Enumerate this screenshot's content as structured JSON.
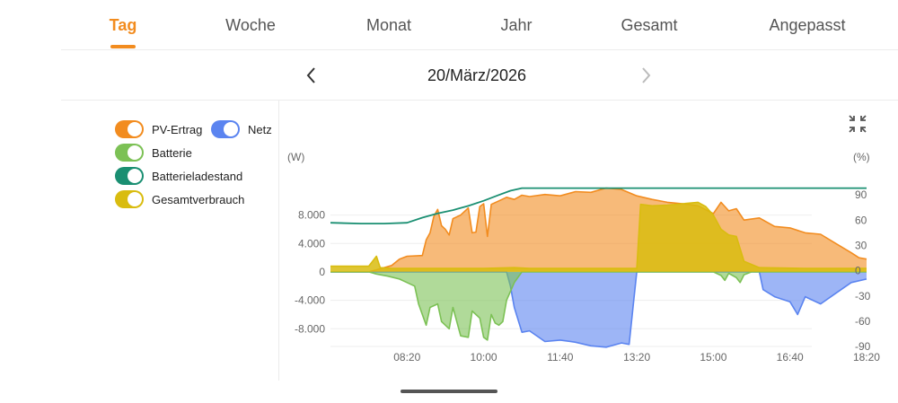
{
  "tabs": [
    {
      "label": "Tag",
      "active": true
    },
    {
      "label": "Woche",
      "active": false
    },
    {
      "label": "Monat",
      "active": false
    },
    {
      "label": "Jahr",
      "active": false
    },
    {
      "label": "Gesamt",
      "active": false
    },
    {
      "label": "Angepasst",
      "active": false
    }
  ],
  "date_nav": {
    "date": "20/März/2026",
    "prev_icon": "chevron-left-icon",
    "next_icon": "chevron-right-icon",
    "next_enabled": false
  },
  "legend": [
    {
      "label": "PV-Ertrag",
      "color": "#f28c1f",
      "on": true
    },
    {
      "label": "Netz",
      "color": "#5b84f0",
      "on": true
    },
    {
      "label": "Batterie",
      "color": "#7cc155",
      "on": true
    },
    {
      "label": "Batterieladestand",
      "color": "#1a8f72",
      "on": true
    },
    {
      "label": "Gesamtverbrauch",
      "color": "#d9bc0f",
      "on": true
    }
  ],
  "collapse_icon": "collapse-arrows-icon",
  "chart_data": {
    "type": "area",
    "y_left_unit": "(W)",
    "y_right_unit": "(%)",
    "y_left_ticks": [
      8000,
      4000,
      0,
      -4000,
      -8000
    ],
    "y_left_tick_labels": [
      "8.000",
      "4.000",
      "0",
      "-4.000",
      "-8.000"
    ],
    "y_right_ticks": [
      90,
      60,
      30,
      0,
      -30,
      -60,
      -90
    ],
    "y_right_tick_labels": [
      "90",
      "60",
      "30",
      "0",
      "-30",
      "-60",
      "-90"
    ],
    "x_tick_labels": [
      "08:20",
      "10:00",
      "11:40",
      "13:20",
      "15:00",
      "16:40",
      "18:20"
    ],
    "y_left_range": [
      -11000,
      12500
    ],
    "y_right_range": [
      -94,
      104
    ],
    "colors": {
      "pv": "#f28c1f",
      "grid": "#5b84f0",
      "battery": "#7cc155",
      "soc": "#1a8f72",
      "consumption": "#d9bc0f"
    },
    "series": [
      {
        "name": "PV-Ertrag",
        "key": "pv",
        "points": [
          [
            "06:40",
            0
          ],
          [
            "07:30",
            0
          ],
          [
            "07:40",
            300
          ],
          [
            "08:00",
            900
          ],
          [
            "08:10",
            1800
          ],
          [
            "08:20",
            2200
          ],
          [
            "08:40",
            2300
          ],
          [
            "08:45",
            4500
          ],
          [
            "08:50",
            5500
          ],
          [
            "08:55",
            7800
          ],
          [
            "09:00",
            8800
          ],
          [
            "09:05",
            6500
          ],
          [
            "09:10",
            6000
          ],
          [
            "09:15",
            5200
          ],
          [
            "09:20",
            7500
          ],
          [
            "09:30",
            8000
          ],
          [
            "09:40",
            9000
          ],
          [
            "09:45",
            5500
          ],
          [
            "09:50",
            5600
          ],
          [
            "09:55",
            9200
          ],
          [
            "10:00",
            9600
          ],
          [
            "10:05",
            5000
          ],
          [
            "10:10",
            9500
          ],
          [
            "10:20",
            10000
          ],
          [
            "10:30",
            10500
          ],
          [
            "10:40",
            10200
          ],
          [
            "10:50",
            10800
          ],
          [
            "11:00",
            10600
          ],
          [
            "11:20",
            10900
          ],
          [
            "11:40",
            10700
          ],
          [
            "12:00",
            11300
          ],
          [
            "12:20",
            11200
          ],
          [
            "12:40",
            11800
          ],
          [
            "13:00",
            11600
          ],
          [
            "13:20",
            10700
          ],
          [
            "13:40",
            10200
          ],
          [
            "14:00",
            9800
          ],
          [
            "14:20",
            9600
          ],
          [
            "14:40",
            9300
          ],
          [
            "15:00",
            8200
          ],
          [
            "15:10",
            9800
          ],
          [
            "15:20",
            8600
          ],
          [
            "15:30",
            8900
          ],
          [
            "15:40",
            7300
          ],
          [
            "16:00",
            7600
          ],
          [
            "16:20",
            6400
          ],
          [
            "16:40",
            6200
          ],
          [
            "17:00",
            5500
          ],
          [
            "17:20",
            5300
          ],
          [
            "17:40",
            4000
          ],
          [
            "18:00",
            2700
          ],
          [
            "18:10",
            2000
          ],
          [
            "18:20",
            1800
          ]
        ]
      },
      {
        "name": "Netz",
        "key": "grid",
        "points": [
          [
            "06:40",
            0
          ],
          [
            "10:30",
            0
          ],
          [
            "10:35",
            -2000
          ],
          [
            "10:40",
            -5000
          ],
          [
            "10:50",
            -8500
          ],
          [
            "11:00",
            -8300
          ],
          [
            "11:20",
            -9800
          ],
          [
            "11:40",
            -9600
          ],
          [
            "12:00",
            -9900
          ],
          [
            "12:20",
            -10400
          ],
          [
            "12:40",
            -10600
          ],
          [
            "13:00",
            -10000
          ],
          [
            "13:10",
            -10200
          ],
          [
            "13:15",
            -5000
          ],
          [
            "13:20",
            0
          ],
          [
            "16:00",
            0
          ],
          [
            "16:05",
            -2500
          ],
          [
            "16:20",
            -3500
          ],
          [
            "16:40",
            -4200
          ],
          [
            "16:50",
            -6000
          ],
          [
            "17:00",
            -3500
          ],
          [
            "17:20",
            -4500
          ],
          [
            "17:40",
            -3000
          ],
          [
            "18:00",
            -1500
          ],
          [
            "18:20",
            -1000
          ]
        ]
      },
      {
        "name": "Batterie",
        "key": "battery",
        "points": [
          [
            "06:40",
            0
          ],
          [
            "07:30",
            0
          ],
          [
            "07:40",
            -300
          ],
          [
            "07:55",
            -600
          ],
          [
            "08:10",
            -1000
          ],
          [
            "08:20",
            -1500
          ],
          [
            "08:30",
            -2000
          ],
          [
            "08:35",
            -4500
          ],
          [
            "08:40",
            -6000
          ],
          [
            "08:45",
            -7500
          ],
          [
            "08:50",
            -5000
          ],
          [
            "09:00",
            -4500
          ],
          [
            "09:05",
            -7000
          ],
          [
            "09:15",
            -8000
          ],
          [
            "09:20",
            -5000
          ],
          [
            "09:30",
            -9000
          ],
          [
            "09:40",
            -9200
          ],
          [
            "09:45",
            -5500
          ],
          [
            "09:55",
            -6500
          ],
          [
            "10:00",
            -9200
          ],
          [
            "10:05",
            -9600
          ],
          [
            "10:10",
            -6000
          ],
          [
            "10:15",
            -7200
          ],
          [
            "10:20",
            -7500
          ],
          [
            "10:25",
            -7000
          ],
          [
            "10:30",
            -4000
          ],
          [
            "10:40",
            -1500
          ],
          [
            "10:50",
            0
          ],
          [
            "15:00",
            0
          ],
          [
            "15:10",
            -500
          ],
          [
            "15:15",
            -1200
          ],
          [
            "15:20",
            -200
          ],
          [
            "15:30",
            -800
          ],
          [
            "15:35",
            -1500
          ],
          [
            "15:40",
            -400
          ],
          [
            "15:50",
            0
          ],
          [
            "18:20",
            0
          ]
        ]
      },
      {
        "name": "Gesamtverbrauch",
        "key": "consumption",
        "points": [
          [
            "06:40",
            800
          ],
          [
            "07:30",
            800
          ],
          [
            "07:40",
            2200
          ],
          [
            "07:45",
            600
          ],
          [
            "08:00",
            500
          ],
          [
            "09:00",
            500
          ],
          [
            "10:00",
            500
          ],
          [
            "10:40",
            600
          ],
          [
            "11:00",
            500
          ],
          [
            "13:00",
            500
          ],
          [
            "13:20",
            500
          ],
          [
            "13:25",
            9500
          ],
          [
            "13:40",
            9300
          ],
          [
            "14:00",
            9400
          ],
          [
            "14:20",
            9600
          ],
          [
            "14:40",
            9800
          ],
          [
            "14:50",
            9200
          ],
          [
            "15:00",
            8000
          ],
          [
            "15:10",
            6000
          ],
          [
            "15:20",
            5200
          ],
          [
            "15:30",
            5000
          ],
          [
            "15:40",
            1500
          ],
          [
            "16:00",
            600
          ],
          [
            "17:00",
            500
          ],
          [
            "18:20",
            500
          ]
        ]
      },
      {
        "name": "Batterieladestand",
        "key": "soc",
        "axis": "right",
        "points": [
          [
            "06:40",
            57
          ],
          [
            "07:20",
            56
          ],
          [
            "07:50",
            56
          ],
          [
            "08:20",
            57
          ],
          [
            "08:40",
            63
          ],
          [
            "09:00",
            68
          ],
          [
            "09:20",
            72
          ],
          [
            "09:40",
            77
          ],
          [
            "10:00",
            83
          ],
          [
            "10:20",
            90
          ],
          [
            "10:35",
            95
          ],
          [
            "10:50",
            98
          ],
          [
            "11:40",
            98
          ],
          [
            "13:20",
            98
          ],
          [
            "15:00",
            98
          ],
          [
            "18:20",
            98
          ]
        ]
      }
    ]
  }
}
